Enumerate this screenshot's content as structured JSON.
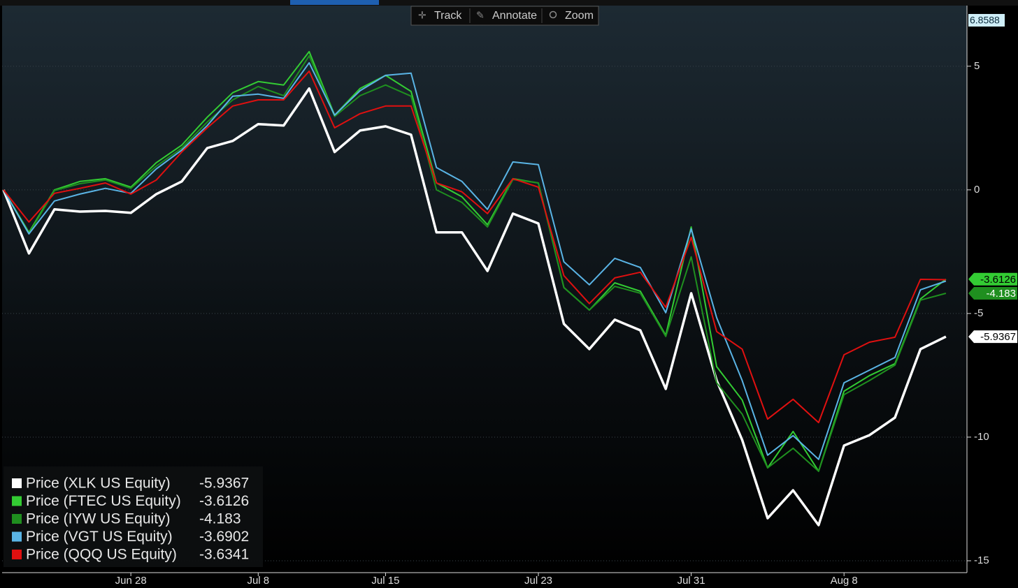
{
  "toolbar": [
    "Track",
    "Annotate",
    "Zoom"
  ],
  "chart_data": {
    "type": "line",
    "categories": [
      null,
      null,
      null,
      null,
      null,
      "Jun 28",
      null,
      null,
      null,
      null,
      "Jul 8",
      null,
      null,
      null,
      null,
      "Jul 15",
      null,
      null,
      null,
      null,
      null,
      "Jul 23",
      null,
      null,
      null,
      null,
      null,
      "Jul 31",
      null,
      null,
      null,
      null,
      null,
      "Aug 8",
      null,
      null,
      null,
      null
    ],
    "ylim": [
      -15.48,
      6.8588
    ],
    "yticks": [
      5,
      0,
      -5,
      -10,
      -15
    ],
    "grid": true,
    "legend": "bottom-left",
    "series": [
      {
        "name": "Price (XLK US Equity)",
        "color": "#ffffff",
        "width": 3.5,
        "values": [
          0,
          -2.57,
          -0.79,
          -0.88,
          -0.85,
          -0.93,
          -0.17,
          0.34,
          1.69,
          1.98,
          2.66,
          2.6,
          4.1,
          1.53,
          2.4,
          2.57,
          2.23,
          -1.72,
          -1.72,
          -3.28,
          -0.96,
          -1.36,
          -5.42,
          -6.44,
          -5.25,
          -5.68,
          -8.05,
          -4.18,
          -7.71,
          -10.11,
          -13.28,
          -12.15,
          -13.56,
          -10.34,
          -9.92,
          -9.21,
          -6.44,
          -5.9367
        ]
      },
      {
        "name": "Price (FTEC US Equity)",
        "color": "#33cc33",
        "width": 2,
        "values": [
          0,
          -1.72,
          0,
          0.34,
          0.45,
          0.11,
          1.1,
          1.81,
          2.94,
          3.93,
          4.38,
          4.24,
          5.59,
          3.02,
          4.1,
          4.63,
          3.98,
          0.28,
          -0.28,
          -1.41,
          0.45,
          0.28,
          -3.95,
          -4.86,
          -3.76,
          -4.1,
          -5.88,
          -1.5,
          -7.15,
          -8.5,
          -11.24,
          -9.77,
          -11.38,
          -8.14,
          -7.51,
          -7.03,
          -4.41,
          -3.6126
        ]
      },
      {
        "name": "Price (IYW US Equity)",
        "color": "#1f8f1f",
        "width": 2,
        "values": [
          0,
          -1.78,
          -0.03,
          0.25,
          0.4,
          0.06,
          0.96,
          1.69,
          2.74,
          3.64,
          4.18,
          3.81,
          5.42,
          2.97,
          3.81,
          4.24,
          3.79,
          0,
          -0.51,
          -1.5,
          0.42,
          0.28,
          -3.95,
          -4.86,
          -3.9,
          -4.18,
          -5.93,
          -2.71,
          -7.8,
          -9.07,
          -11.24,
          -10.45,
          -11.38,
          -8.28,
          -7.71,
          -7.09,
          -4.46,
          -4.183
        ]
      },
      {
        "name": "Price (VGT US Equity)",
        "color": "#5ab4e5",
        "width": 2,
        "values": [
          0,
          -1.78,
          -0.45,
          -0.17,
          0.06,
          -0.14,
          0.85,
          1.61,
          2.6,
          3.79,
          3.87,
          3.7,
          5.14,
          3.02,
          4.01,
          4.63,
          4.72,
          0.9,
          0.34,
          -0.79,
          1.13,
          1.02,
          -2.91,
          -3.84,
          -2.77,
          -3.14,
          -4.97,
          -1.58,
          -5.17,
          -7.71,
          -10.73,
          -9.94,
          -10.9,
          -7.8,
          -7.29,
          -6.78,
          -4.04,
          -3.6902
        ]
      },
      {
        "name": "Price (QQQ US Equity)",
        "color": "#e01010",
        "width": 2,
        "values": [
          0,
          -1.3,
          -0.14,
          0.06,
          0.28,
          -0.17,
          0.4,
          1.53,
          2.51,
          3.39,
          3.64,
          3.64,
          4.8,
          2.51,
          3.08,
          3.39,
          3.39,
          0.28,
          -0.08,
          -0.96,
          0.45,
          0.11,
          -3.47,
          -4.6,
          -3.56,
          -3.33,
          -4.75,
          -1.92,
          -5.73,
          -6.44,
          -9.27,
          -8.47,
          -9.41,
          -6.67,
          -6.16,
          -5.96,
          -3.62,
          -3.6341
        ]
      }
    ],
    "tags": [
      1,
      2,
      0
    ]
  }
}
